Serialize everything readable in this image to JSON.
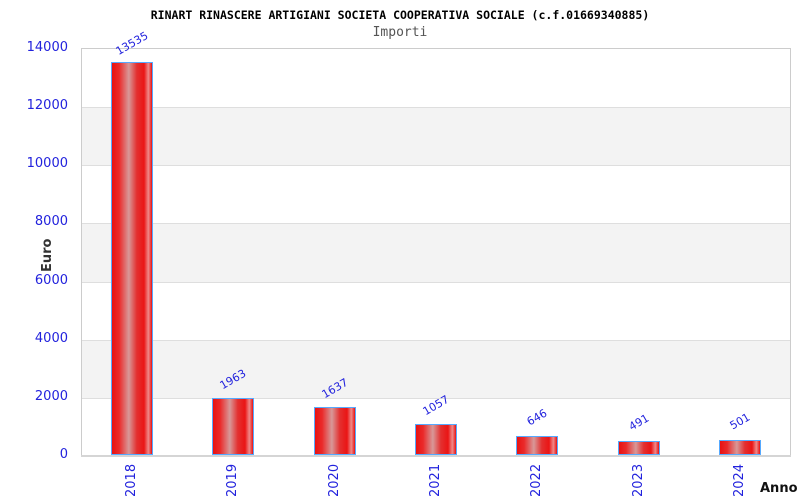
{
  "colors": {
    "label_blue": "#2222dd",
    "title_black": "#000000",
    "subtitle_gray": "#555555",
    "bar_red": "#ee1111",
    "bar_highlight": "#d89898",
    "bar_border_blue": "#55a9ff",
    "stripe_gray": "#f3f3f3",
    "gridline_gray": "#dedede",
    "plot_border_gray": "#cccccc",
    "axis_line_gray": "#d5d5d5"
  },
  "chart_data": {
    "type": "bar",
    "title": "RINART RINASCERE ARTIGIANI SOCIETA COOPERATIVA SOCIALE (c.f.01669340885)",
    "subtitle": "Importi",
    "xlabel": "Anno",
    "ylabel": "Euro",
    "categories": [
      "2018",
      "2019",
      "2020",
      "2021",
      "2022",
      "2023",
      "2024"
    ],
    "values": [
      13535,
      1963,
      1637,
      1057,
      646,
      491,
      501
    ],
    "value_labels": [
      "13535",
      "1963",
      "1637",
      "1057",
      "646",
      "491",
      "501"
    ],
    "ylim": [
      0,
      14000
    ],
    "yticks": [
      0,
      2000,
      4000,
      6000,
      8000,
      10000,
      12000,
      14000
    ],
    "grid": "alternating horizontal bands, light line at each ytick",
    "legend": "none",
    "bar_style": "red horizontal gradient with central highlight, light blue 1px border",
    "label_rotation_deg": -30,
    "xtick_rotation": "vertical bottom-to-top"
  }
}
